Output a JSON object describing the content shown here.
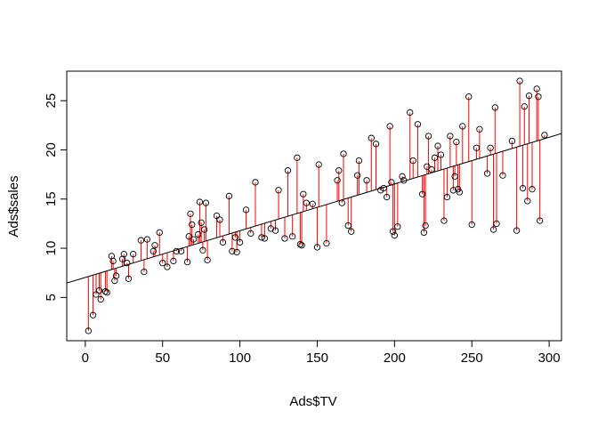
{
  "chart_data": {
    "type": "scatter",
    "title": "",
    "xlabel": "Ads$TV",
    "ylabel": "Ads$sales",
    "xlim": [
      -12,
      308
    ],
    "ylim": [
      0.6,
      28.0
    ],
    "xticks": [
      0,
      50,
      100,
      150,
      200,
      250,
      300
    ],
    "yticks": [
      5,
      10,
      15,
      20,
      25
    ],
    "grid": false,
    "legend": "none",
    "regression": {
      "intercept": 7.03,
      "slope": 0.0475
    },
    "colors": {
      "points": "#000000",
      "residuals": "#ff0000",
      "line": "#000000"
    },
    "points": {
      "x": [
        2,
        5,
        7,
        9,
        10,
        13,
        14,
        17,
        18,
        19,
        20,
        24,
        25,
        27,
        28,
        31,
        36,
        38,
        40,
        44,
        45,
        48,
        50,
        53,
        57,
        59,
        62,
        66,
        67,
        68,
        69,
        70,
        73,
        74,
        75,
        76,
        77,
        78,
        79,
        85,
        87,
        89,
        93,
        95,
        97,
        98,
        100,
        104,
        107,
        110,
        114,
        116,
        120,
        123,
        125,
        129,
        131,
        134,
        137,
        139,
        140,
        141,
        143,
        147,
        150,
        151,
        156,
        163,
        164,
        166,
        167,
        170,
        172,
        176,
        177,
        182,
        185,
        188,
        191,
        193,
        195,
        197,
        198,
        199,
        200,
        202,
        205,
        206,
        210,
        212,
        215,
        218,
        219,
        220,
        221,
        222,
        224,
        226,
        228,
        230,
        232,
        234,
        236,
        238,
        239,
        240,
        241,
        242,
        244,
        248,
        250,
        253,
        255,
        260,
        262,
        264,
        265,
        266,
        270,
        276,
        279,
        281,
        283,
        284,
        286,
        287,
        289,
        292,
        293,
        294,
        297
      ],
      "y": [
        1.6,
        3.2,
        5.3,
        5.7,
        4.8,
        5.6,
        5.5,
        9.2,
        8.7,
        6.7,
        7.2,
        8.9,
        9.4,
        8.5,
        6.9,
        9.4,
        10.8,
        7.6,
        10.9,
        9.7,
        10.3,
        11.6,
        8.5,
        8.1,
        8.7,
        9.7,
        9.7,
        8.6,
        11.2,
        13.5,
        12.4,
        10.9,
        11.4,
        14.7,
        12.6,
        9.8,
        11.9,
        14.6,
        8.8,
        13.3,
        12.9,
        10.6,
        15.3,
        9.7,
        11.1,
        9.6,
        10.6,
        13.9,
        11.5,
        16.7,
        11.1,
        11.0,
        12.0,
        11.8,
        15.9,
        11.0,
        17.9,
        11.2,
        19.2,
        10.4,
        10.3,
        15.5,
        14.6,
        14.5,
        10.1,
        18.5,
        10.5,
        16.9,
        17.9,
        14.6,
        19.6,
        12.3,
        11.7,
        17.4,
        18.9,
        16.9,
        21.2,
        20.6,
        15.9,
        16.1,
        15.2,
        22.4,
        16.7,
        11.7,
        11.3,
        12.2,
        17.3,
        16.9,
        23.8,
        18.9,
        22.6,
        15.5,
        11.6,
        12.3,
        18.3,
        21.4,
        18.0,
        19.2,
        20.4,
        19.5,
        12.8,
        15.2,
        21.4,
        15.9,
        17.3,
        20.8,
        16.0,
        15.7,
        22.4,
        25.4,
        12.4,
        20.2,
        22.1,
        17.6,
        20.2,
        11.9,
        24.3,
        12.5,
        17.4,
        20.9,
        11.8,
        27.0,
        16.1,
        24.4,
        14.8,
        25.5,
        16.0,
        26.2,
        25.4,
        12.8,
        21.5
      ]
    }
  }
}
